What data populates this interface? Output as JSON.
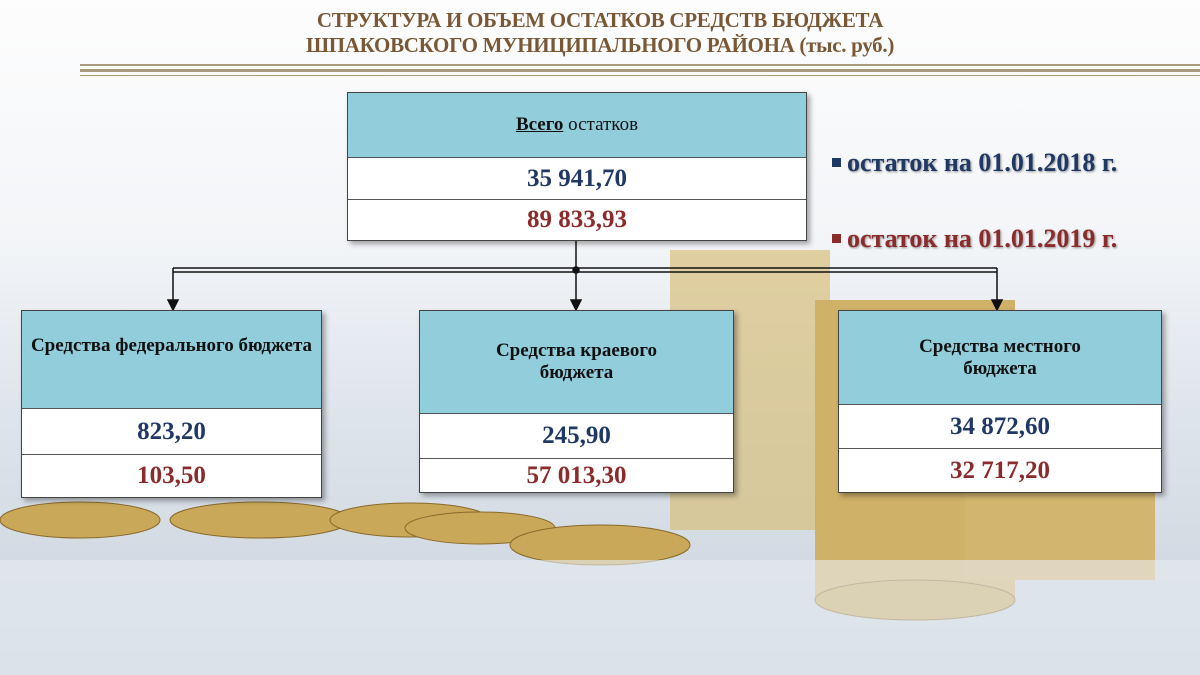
{
  "title": {
    "line1": "СТРУКТУРА И ОБЪЕМ ОСТАТКОВ  СРЕДСТВ БЮДЖЕТА",
    "line2": "ШПАКОВСКОГО МУНИЦИПАЛЬНОГО  РАЙОНА  (тыс. руб.)"
  },
  "colors": {
    "header": "#92cddc",
    "value_2018": "#1f3864",
    "value_2019": "#8b2b2b",
    "title": "#7a5836"
  },
  "total": {
    "label_bold": "Всего",
    "label_rest": " остатков",
    "value_2018": "35 941,70",
    "value_2019": "89 833,93"
  },
  "legend": [
    {
      "label": "остаток на 01.01.2018 г."
    },
    {
      "label": "остаток на 01.01.2019 г."
    }
  ],
  "branches": [
    {
      "label": "Средства федерального бюджета",
      "value_2018": "823,20",
      "value_2019": "103,50"
    },
    {
      "label": "Средства краевого бюджета",
      "value_2018": "245,90",
      "value_2019": "57 013,30"
    },
    {
      "label": "Средства местного бюджета",
      "value_2018": "34 872,60",
      "value_2019": "32 717,20"
    }
  ]
}
